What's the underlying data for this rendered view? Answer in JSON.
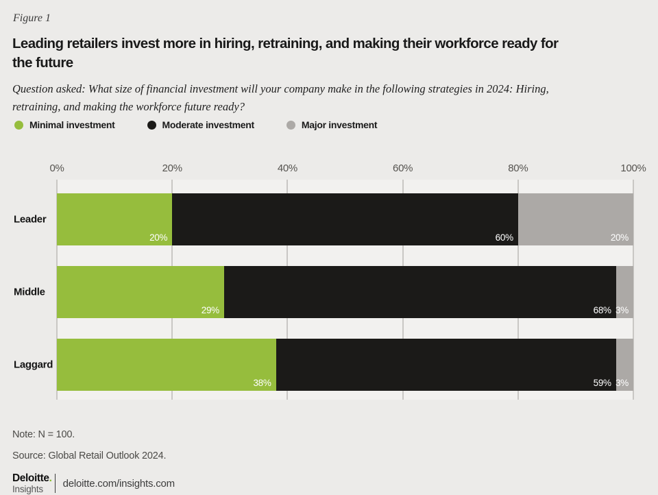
{
  "figure_label": "Figure 1",
  "title_lines": [
    "Leading retailers invest more in hiring, retraining, and making their workforce ready for",
    "the future"
  ],
  "title": "Leading retailers invest more in hiring, retraining, and making their workforce ready for the future",
  "question_lines": [
    "Question asked: What size of financial investment will your company make in the following strategies in 2024: Hiring,",
    "retraining, and making the workforce future ready?"
  ],
  "legend": [
    {
      "label": "Minimal investment",
      "color": "#96BD3D"
    },
    {
      "label": "Moderate investment",
      "color": "#1B1A18"
    },
    {
      "label": "Major investment",
      "color": "#ACA9A6"
    }
  ],
  "chart_data": {
    "type": "bar",
    "orientation": "horizontal",
    "stacked": true,
    "categories": [
      "Leader",
      "Middle",
      "Laggard"
    ],
    "series": [
      {
        "name": "Minimal investment",
        "color": "#96BD3D",
        "values": [
          20,
          29,
          38
        ]
      },
      {
        "name": "Moderate investment",
        "color": "#1B1A18",
        "values": [
          60,
          68,
          59
        ]
      },
      {
        "name": "Major investment",
        "color": "#ACA9A6",
        "values": [
          20,
          3,
          3
        ]
      }
    ],
    "x_ticks": [
      "0%",
      "20%",
      "40%",
      "60%",
      "80%",
      "100%"
    ],
    "xlim": [
      0,
      100
    ],
    "grid": true,
    "value_label_suffix": "%",
    "colors": {
      "page_background": "#ECEBE9",
      "plot_background": "#F2F1EF",
      "gridline": "#C9C7C4",
      "value_label": "#FFFFFF"
    }
  },
  "note": "Note: N = 100.",
  "source": "Source: Global Retail Outlook 2024.",
  "footer": {
    "brand_name": "Deloitte",
    "brand_dot": ".",
    "brand_sub": "Insights",
    "url": "deloitte.com/insights.com"
  }
}
